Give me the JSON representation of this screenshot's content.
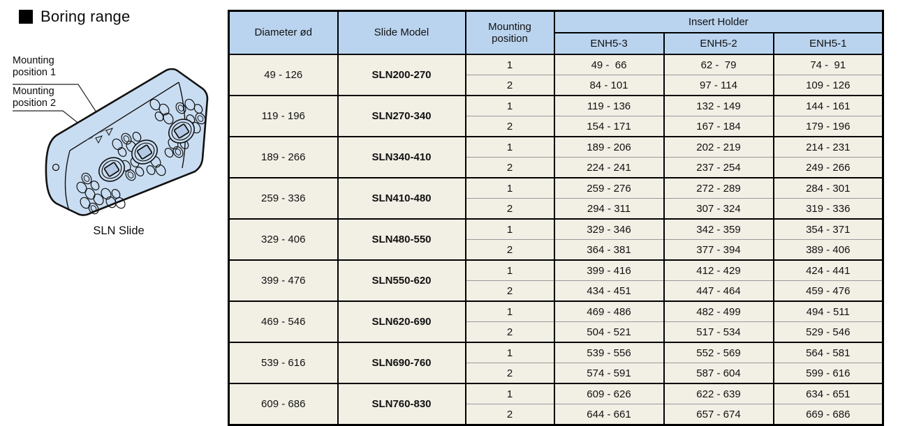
{
  "title": {
    "text": "Boring range"
  },
  "diagram": {
    "label_1": "Mounting position 1",
    "label_2": "Mounting position 2",
    "caption": "SLN Slide"
  },
  "table": {
    "header": {
      "diameter": "Diameter ød",
      "slide_model": "Slide Model",
      "mounting_line1": "Mounting",
      "mounting_line2": "position",
      "insert_holder": "Insert Holder",
      "enh": [
        "ENH5-3",
        "ENH5-2",
        "ENH5-1"
      ]
    },
    "groups": [
      {
        "diameter": "49 - 126",
        "model": "SLN200-270",
        "rows": [
          {
            "pos": "1",
            "r3": "49 -  66",
            "r2": "62 -  79",
            "r1": "74 -  91"
          },
          {
            "pos": "2",
            "r3": "84 - 101",
            "r2": "97 - 114",
            "r1": "109 - 126"
          }
        ]
      },
      {
        "diameter": "119 - 196",
        "model": "SLN270-340",
        "rows": [
          {
            "pos": "1",
            "r3": "119 - 136",
            "r2": "132 - 149",
            "r1": "144 - 161"
          },
          {
            "pos": "2",
            "r3": "154 - 171",
            "r2": "167 - 184",
            "r1": "179 - 196"
          }
        ]
      },
      {
        "diameter": "189 - 266",
        "model": "SLN340-410",
        "rows": [
          {
            "pos": "1",
            "r3": "189 - 206",
            "r2": "202 - 219",
            "r1": "214 - 231"
          },
          {
            "pos": "2",
            "r3": "224 - 241",
            "r2": "237 - 254",
            "r1": "249 - 266"
          }
        ]
      },
      {
        "diameter": "259 - 336",
        "model": "SLN410-480",
        "rows": [
          {
            "pos": "1",
            "r3": "259 - 276",
            "r2": "272 - 289",
            "r1": "284 - 301"
          },
          {
            "pos": "2",
            "r3": "294 - 311",
            "r2": "307 - 324",
            "r1": "319 - 336"
          }
        ]
      },
      {
        "diameter": "329 - 406",
        "model": "SLN480-550",
        "rows": [
          {
            "pos": "1",
            "r3": "329 - 346",
            "r2": "342 - 359",
            "r1": "354 - 371"
          },
          {
            "pos": "2",
            "r3": "364 - 381",
            "r2": "377 - 394",
            "r1": "389 - 406"
          }
        ]
      },
      {
        "diameter": "399 - 476",
        "model": "SLN550-620",
        "rows": [
          {
            "pos": "1",
            "r3": "399 - 416",
            "r2": "412 - 429",
            "r1": "424 - 441"
          },
          {
            "pos": "2",
            "r3": "434 - 451",
            "r2": "447 - 464",
            "r1": "459 - 476"
          }
        ]
      },
      {
        "diameter": "469 - 546",
        "model": "SLN620-690",
        "rows": [
          {
            "pos": "1",
            "r3": "469 - 486",
            "r2": "482 - 499",
            "r1": "494 - 511"
          },
          {
            "pos": "2",
            "r3": "504 - 521",
            "r2": "517 - 534",
            "r1": "529 - 546"
          }
        ]
      },
      {
        "diameter": "539 - 616",
        "model": "SLN690-760",
        "rows": [
          {
            "pos": "1",
            "r3": "539 - 556",
            "r2": "552 - 569",
            "r1": "564 - 581"
          },
          {
            "pos": "2",
            "r3": "574 - 591",
            "r2": "587 - 604",
            "r1": "599 - 616"
          }
        ]
      },
      {
        "diameter": "609 - 686",
        "model": "SLN760-830",
        "rows": [
          {
            "pos": "1",
            "r3": "609 - 626",
            "r2": "622 - 639",
            "r1": "634 - 651"
          },
          {
            "pos": "2",
            "r3": "644 - 661",
            "r2": "657 - 674",
            "r1": "669 - 686"
          }
        ]
      }
    ]
  },
  "colors": {
    "header_bg": "#bad4ef",
    "model_cell_bg": "#d2eaf8",
    "row_bg": "#f2efe5",
    "block_fill": "#c9ddf2",
    "border": "#000000"
  }
}
